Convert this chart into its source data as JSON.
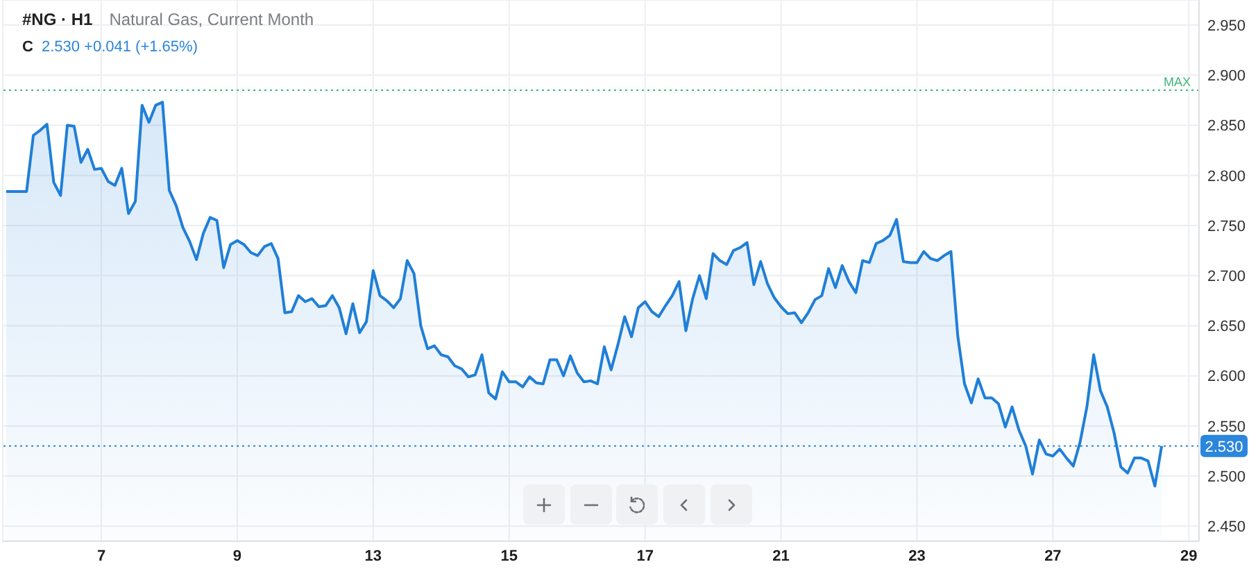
{
  "chart_data": {
    "type": "area",
    "title": "#NG · H1",
    "subtitle": "Natural Gas, Current Month",
    "annotations": [
      "C",
      "2.530 +0.041 (+1.65%)"
    ],
    "categories": [
      null,
      null,
      null,
      null,
      null,
      null,
      null,
      null,
      null,
      null,
      null,
      null,
      null,
      null,
      "7",
      null,
      null,
      null,
      null,
      null,
      null,
      null,
      null,
      null,
      null,
      null,
      null,
      null,
      null,
      null,
      null,
      null,
      null,
      null,
      "9",
      null,
      null,
      null,
      null,
      null,
      null,
      null,
      null,
      null,
      null,
      null,
      null,
      null,
      null,
      null,
      null,
      null,
      null,
      null,
      "13",
      null,
      null,
      null,
      null,
      null,
      null,
      null,
      null,
      null,
      null,
      null,
      null,
      null,
      null,
      null,
      null,
      null,
      null,
      null,
      "15",
      null,
      null,
      null,
      null,
      null,
      null,
      null,
      null,
      null,
      null,
      null,
      null,
      null,
      null,
      null,
      null,
      null,
      null,
      null,
      "17",
      null,
      null,
      null,
      null,
      null,
      null,
      null,
      null,
      null,
      null,
      null,
      null,
      null,
      null,
      null,
      null,
      null,
      null,
      null,
      "21",
      null,
      null,
      null,
      null,
      null,
      null,
      null,
      null,
      null,
      null,
      null,
      null,
      null,
      null,
      null,
      null,
      null,
      null,
      null,
      "23",
      null,
      null,
      null,
      null,
      null,
      null,
      null,
      null,
      null,
      null,
      null,
      null,
      null,
      null,
      null,
      null,
      null,
      null,
      null,
      "27",
      null,
      null,
      null,
      null,
      null,
      null,
      null,
      null,
      null,
      null,
      null,
      null,
      null,
      null,
      null,
      null,
      null,
      null,
      null,
      "29",
      null
    ],
    "values": [
      2.784,
      2.784,
      2.784,
      2.784,
      2.84,
      2.845,
      2.851,
      2.793,
      2.78,
      2.85,
      2.849,
      2.813,
      2.826,
      2.806,
      2.807,
      2.794,
      2.79,
      2.807,
      2.762,
      2.774,
      2.87,
      2.853,
      2.87,
      2.873,
      2.785,
      2.77,
      2.748,
      2.734,
      2.716,
      2.742,
      2.758,
      2.755,
      2.708,
      2.731,
      2.735,
      2.731,
      2.723,
      2.72,
      2.729,
      2.732,
      2.717,
      2.663,
      2.664,
      2.68,
      2.674,
      2.677,
      2.669,
      2.67,
      2.68,
      2.668,
      2.642,
      2.672,
      2.643,
      2.654,
      2.705,
      2.68,
      2.675,
      2.668,
      2.677,
      2.715,
      2.702,
      2.65,
      2.627,
      2.63,
      2.621,
      2.619,
      2.61,
      2.607,
      2.599,
      2.601,
      2.621,
      2.583,
      2.577,
      2.604,
      2.594,
      2.594,
      2.589,
      2.599,
      2.593,
      2.592,
      2.616,
      2.616,
      2.6,
      2.62,
      2.603,
      2.594,
      2.595,
      2.592,
      2.629,
      2.606,
      2.631,
      2.659,
      2.639,
      2.668,
      2.674,
      2.664,
      2.659,
      2.67,
      2.68,
      2.694,
      2.645,
      2.677,
      2.7,
      2.677,
      2.722,
      2.715,
      2.711,
      2.725,
      2.728,
      2.733,
      2.691,
      2.714,
      2.692,
      2.678,
      2.669,
      2.662,
      2.663,
      2.653,
      2.663,
      2.676,
      2.68,
      2.707,
      2.688,
      2.71,
      2.694,
      2.683,
      2.715,
      2.713,
      2.732,
      2.735,
      2.74,
      2.756,
      2.714,
      2.713,
      2.713,
      2.724,
      2.717,
      2.715,
      2.72,
      2.724,
      2.64,
      2.592,
      2.573,
      2.597,
      2.578,
      2.578,
      2.572,
      2.549,
      2.569,
      2.546,
      2.53,
      2.502,
      2.536,
      2.522,
      2.52,
      2.527,
      2.518,
      2.51,
      2.534,
      2.569,
      2.621,
      2.585,
      2.569,
      2.543,
      2.509,
      2.503,
      2.518,
      2.518,
      2.515,
      2.49,
      2.53,
      null,
      null,
      null,
      null,
      null
    ],
    "color": "#1f7fd8",
    "ylim": [
      2.435,
      2.975
    ],
    "yticks": [
      {
        "value": 2.45,
        "label": "2.450"
      },
      {
        "value": 2.5,
        "label": "2.500"
      },
      {
        "value": 2.55,
        "label": "2.550"
      },
      {
        "value": 2.6,
        "label": "2.600"
      },
      {
        "value": 2.65,
        "label": "2.650"
      },
      {
        "value": 2.7,
        "label": "2.700"
      },
      {
        "value": 2.75,
        "label": "2.750"
      },
      {
        "value": 2.8,
        "label": "2.800"
      },
      {
        "value": 2.85,
        "label": "2.850"
      },
      {
        "value": 2.9,
        "label": "2.900"
      },
      {
        "value": 2.95,
        "label": "2.950"
      }
    ],
    "grid": true,
    "ref_lines": [
      {
        "axis": "y",
        "value": 2.885,
        "label": "MAX",
        "color": "#3cb77a",
        "line_style": "dotted"
      },
      {
        "axis": "y",
        "value": 2.53,
        "label": "2.530",
        "color": "#2b86dc",
        "line_style": "dotted"
      }
    ]
  }
}
